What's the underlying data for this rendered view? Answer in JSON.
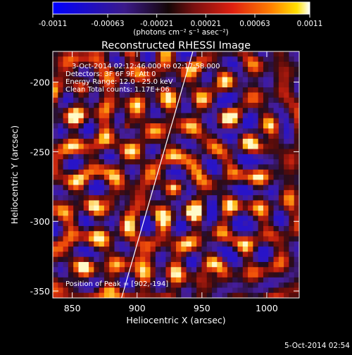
{
  "chart_data": {
    "type": "heatmap",
    "title": "Reconstructed RHESSI Image",
    "xlabel": "Heliocentric X (arcsec)",
    "ylabel": "Heliocentric Y (arcsec)",
    "xlim": [
      835,
      1025
    ],
    "ylim": [
      -355,
      -178
    ],
    "x_ticks": [
      "850",
      "900",
      "950",
      "1000"
    ],
    "x_tick_values": [
      850,
      900,
      950,
      1000
    ],
    "y_ticks": [
      "-200",
      "-250",
      "-300",
      "-350"
    ],
    "y_tick_values": [
      -200,
      -250,
      -300,
      -350
    ],
    "colorbar": {
      "range": [
        -0.0011,
        0.0011
      ],
      "ticks": [
        "-0.0011",
        "-0.00063",
        "-0.00021",
        "0.00021",
        "0.00063",
        "0.0011"
      ],
      "tick_values": [
        -0.0011,
        -0.00063,
        -0.00021,
        0.00021,
        0.00063,
        0.0011
      ],
      "units": "(photons cm⁻² s⁻¹ asec⁻²)",
      "colormap": [
        "#0000ff",
        "#3b1a8a",
        "#1a0808",
        "#7a1010",
        "#e02010",
        "#ff7000",
        "#ffd000",
        "#ffffff"
      ]
    },
    "annotations": {
      "time": "3-Oct-2014 02:12:46.000 to 02:17:58.000",
      "detectors": "Detectors: 3F 6F 9F, Att 0",
      "energy": "Energy Range: 12.0 - 25.0 keV",
      "method": "Clean     Total counts: 1.17E+06",
      "peak": "Position of Peak = [902,-194]"
    },
    "limb_line": {
      "x": [
        888,
        943
      ],
      "y": [
        -355,
        -178
      ]
    },
    "grid": false
  },
  "footer": {
    "timestamp": "5-Oct-2014 02:54"
  }
}
